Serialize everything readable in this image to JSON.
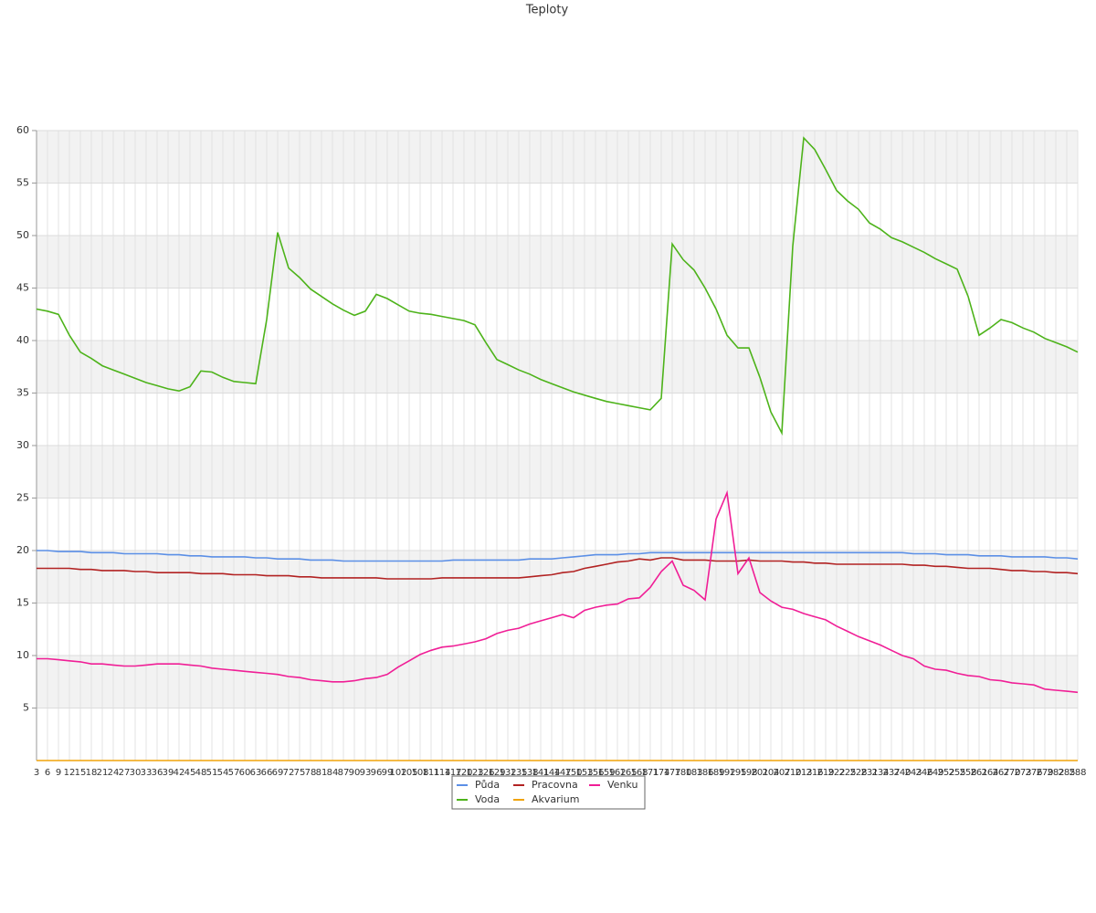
{
  "chart_data": {
    "type": "line",
    "title": "Teploty",
    "categories": [
      "3",
      "6",
      "9",
      "12",
      "15",
      "18",
      "21",
      "24",
      "27",
      "30",
      "33",
      "36",
      "39",
      "42",
      "45",
      "48",
      "51",
      "54",
      "57",
      "60",
      "63",
      "66",
      "69",
      "72",
      "75",
      "78",
      "81",
      "84",
      "87",
      "90",
      "93",
      "96",
      "99",
      "102",
      "105",
      "108",
      "111",
      "114",
      "117",
      "120",
      "123",
      "126",
      "129",
      "132",
      "135",
      "138",
      "141",
      "144",
      "147",
      "150",
      "153",
      "156",
      "159",
      "162",
      "165",
      "168",
      "171",
      "174",
      "177",
      "180",
      "183",
      "186",
      "189",
      "192",
      "195",
      "198",
      "201",
      "204",
      "207",
      "210",
      "213",
      "216",
      "219",
      "222",
      "225",
      "228",
      "231",
      "234",
      "237",
      "240",
      "243",
      "246",
      "249",
      "252",
      "255",
      "258",
      "261",
      "264",
      "267",
      "270",
      "273",
      "276",
      "279",
      "282",
      "285",
      "288"
    ],
    "series": [
      {
        "name": "Půda",
        "color": "#5b8fe6",
        "values": [
          20.0,
          20.0,
          19.9,
          19.9,
          19.9,
          19.8,
          19.8,
          19.8,
          19.7,
          19.7,
          19.7,
          19.7,
          19.6,
          19.6,
          19.5,
          19.5,
          19.4,
          19.4,
          19.4,
          19.4,
          19.3,
          19.3,
          19.2,
          19.2,
          19.2,
          19.1,
          19.1,
          19.1,
          19.0,
          19.0,
          19.0,
          19.0,
          19.0,
          19.0,
          19.0,
          19.0,
          19.0,
          19.0,
          19.1,
          19.1,
          19.1,
          19.1,
          19.1,
          19.1,
          19.1,
          19.2,
          19.2,
          19.2,
          19.3,
          19.4,
          19.5,
          19.6,
          19.6,
          19.6,
          19.7,
          19.7,
          19.8,
          19.8,
          19.8,
          19.8,
          19.8,
          19.8,
          19.8,
          19.8,
          19.8,
          19.8,
          19.8,
          19.8,
          19.8,
          19.8,
          19.8,
          19.8,
          19.8,
          19.8,
          19.8,
          19.8,
          19.8,
          19.8,
          19.8,
          19.8,
          19.7,
          19.7,
          19.7,
          19.6,
          19.6,
          19.6,
          19.5,
          19.5,
          19.5,
          19.4,
          19.4,
          19.4,
          19.4,
          19.3,
          19.3,
          19.2
        ]
      },
      {
        "name": "Pracovna",
        "color": "#b22222",
        "values": [
          18.3,
          18.3,
          18.3,
          18.3,
          18.2,
          18.2,
          18.1,
          18.1,
          18.1,
          18.0,
          18.0,
          17.9,
          17.9,
          17.9,
          17.9,
          17.8,
          17.8,
          17.8,
          17.7,
          17.7,
          17.7,
          17.6,
          17.6,
          17.6,
          17.5,
          17.5,
          17.4,
          17.4,
          17.4,
          17.4,
          17.4,
          17.4,
          17.3,
          17.3,
          17.3,
          17.3,
          17.3,
          17.4,
          17.4,
          17.4,
          17.4,
          17.4,
          17.4,
          17.4,
          17.4,
          17.5,
          17.6,
          17.7,
          17.9,
          18.0,
          18.3,
          18.5,
          18.7,
          18.9,
          19.0,
          19.2,
          19.1,
          19.3,
          19.3,
          19.1,
          19.1,
          19.1,
          19.0,
          19.0,
          19.0,
          19.1,
          19.0,
          19.0,
          19.0,
          18.9,
          18.9,
          18.8,
          18.8,
          18.7,
          18.7,
          18.7,
          18.7,
          18.7,
          18.7,
          18.7,
          18.6,
          18.6,
          18.5,
          18.5,
          18.4,
          18.3,
          18.3,
          18.3,
          18.2,
          18.1,
          18.1,
          18.0,
          18.0,
          17.9,
          17.9,
          17.8
        ]
      },
      {
        "name": "Venku",
        "color": "#f01e96",
        "values": [
          9.7,
          9.7,
          9.6,
          9.5,
          9.4,
          9.2,
          9.2,
          9.1,
          9.0,
          9.0,
          9.1,
          9.2,
          9.2,
          9.2,
          9.1,
          9.0,
          8.8,
          8.7,
          8.6,
          8.5,
          8.4,
          8.3,
          8.2,
          8.0,
          7.9,
          7.7,
          7.6,
          7.5,
          7.5,
          7.6,
          7.8,
          7.9,
          8.2,
          8.9,
          9.5,
          10.1,
          10.5,
          10.8,
          10.9,
          11.1,
          11.3,
          11.6,
          12.1,
          12.4,
          12.6,
          13.0,
          13.3,
          13.6,
          13.9,
          13.6,
          14.3,
          14.6,
          14.8,
          14.9,
          15.4,
          15.5,
          16.5,
          18.0,
          19.0,
          16.7,
          16.2,
          15.3,
          23.0,
          25.5,
          17.8,
          19.3,
          16.0,
          15.2,
          14.6,
          14.4,
          14.0,
          13.7,
          13.4,
          12.8,
          12.3,
          11.8,
          11.4,
          11.0,
          10.5,
          10.0,
          9.7,
          9.0,
          8.7,
          8.6,
          8.3,
          8.1,
          8.0,
          7.7,
          7.6,
          7.4,
          7.3,
          7.2,
          6.8,
          6.7,
          6.6,
          6.5
        ]
      },
      {
        "name": "Voda",
        "color": "#4db31a",
        "values": [
          43.0,
          42.8,
          42.5,
          40.5,
          38.9,
          38.3,
          37.6,
          37.2,
          36.8,
          36.4,
          36.0,
          35.7,
          35.4,
          35.2,
          35.6,
          37.1,
          37.0,
          36.5,
          36.1,
          36.0,
          35.9,
          42.0,
          50.3,
          46.9,
          46.0,
          44.9,
          44.2,
          43.5,
          42.9,
          42.4,
          42.8,
          44.4,
          44.0,
          43.4,
          42.8,
          42.6,
          42.5,
          42.3,
          42.1,
          41.9,
          41.5,
          39.8,
          38.2,
          37.7,
          37.2,
          36.8,
          36.3,
          35.9,
          35.5,
          35.1,
          34.8,
          34.5,
          34.2,
          34.0,
          33.8,
          33.6,
          33.4,
          34.5,
          49.2,
          47.7,
          46.7,
          45.0,
          43.0,
          40.5,
          39.3,
          39.3,
          36.5,
          33.2,
          31.2,
          49.0,
          59.3,
          58.2,
          56.3,
          54.3,
          53.3,
          52.5,
          51.2,
          50.6,
          49.8,
          49.4,
          48.9,
          48.4,
          47.8,
          47.3,
          46.8,
          44.2,
          40.5,
          41.2,
          42.0,
          41.7,
          41.2,
          40.8,
          40.2,
          39.8,
          39.4,
          38.9
        ]
      },
      {
        "name": "Akvarium",
        "color": "#f0a30a",
        "values": [
          0,
          0,
          0,
          0,
          0,
          0,
          0,
          0,
          0,
          0,
          0,
          0,
          0,
          0,
          0,
          0,
          0,
          0,
          0,
          0,
          0,
          0,
          0,
          0,
          0,
          0,
          0,
          0,
          0,
          0,
          0,
          0,
          0,
          0,
          0,
          0,
          0,
          0,
          0,
          0,
          0,
          0,
          0,
          0,
          0,
          0,
          0,
          0,
          0,
          0,
          0,
          0,
          0,
          0,
          0,
          0,
          0,
          0,
          0,
          0,
          0,
          0,
          0,
          0,
          0,
          0,
          0,
          0,
          0,
          0,
          0,
          0,
          0,
          0,
          0,
          0,
          0,
          0,
          0,
          0,
          0,
          0,
          0,
          0,
          0,
          0,
          0,
          0,
          0,
          0,
          0,
          0,
          0,
          0,
          0,
          0
        ]
      }
    ],
    "ylim": [
      0,
      60
    ],
    "yticks": [
      5,
      10,
      15,
      20,
      25,
      30,
      35,
      40,
      45,
      50,
      55,
      60
    ],
    "grid": true,
    "legend": "bottom"
  }
}
